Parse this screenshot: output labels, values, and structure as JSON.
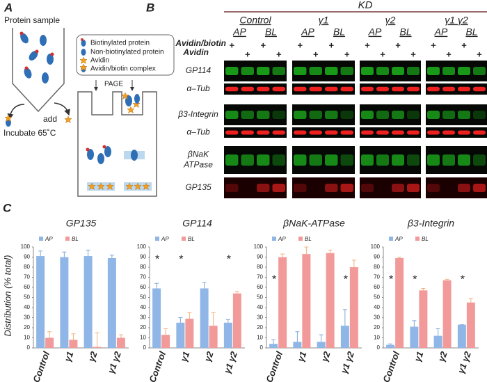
{
  "panel_a": {
    "label": "A",
    "sample": "Protein sample",
    "add": "add",
    "incubate": "Incubate 65˚C",
    "legend": [
      "Biotinylated protein",
      "Non-biotinylated protein",
      "Avidin",
      "Avidin/biotin complex"
    ],
    "page": "PAGE"
  },
  "panel_b": {
    "label": "B",
    "kd": "KD",
    "groups": [
      "Control",
      "γ1",
      "γ2",
      "γ1 γ2"
    ],
    "fractions": [
      "AP",
      "BL"
    ],
    "treatments": [
      "Avidin/biotin",
      "Avidin"
    ],
    "plus": "+",
    "rows": [
      {
        "label": [
          "GP114"
        ],
        "color": "#22e022"
      },
      {
        "label": [
          "α–Tub"
        ],
        "color": "#ee2020"
      },
      {
        "label": [
          "β3-Integrin"
        ],
        "color": "#22e022"
      },
      {
        "label": [
          "α–Tub"
        ],
        "color": "#ee2020"
      },
      {
        "label": [
          "βNaK",
          "ATPase"
        ],
        "color": "#22e022"
      },
      {
        "label": [
          "GP135"
        ],
        "color": "#ee2020"
      }
    ]
  },
  "panel_c": {
    "label": "C",
    "y_label": "Distribution (% total)"
  },
  "chart_data": [
    {
      "type": "bar",
      "title": "GP135",
      "categories": [
        "Control",
        "γ1",
        "γ2",
        "γ1 γ2"
      ],
      "series": [
        {
          "name": "AP",
          "color": "#8fb6e6",
          "values": [
            91,
            90,
            91,
            89
          ],
          "errors": [
            5,
            5,
            6,
            3
          ]
        },
        {
          "name": "BL",
          "color": "#f29a9a",
          "values": [
            10,
            8,
            1,
            10
          ],
          "errors": [
            6,
            6,
            14,
            3
          ]
        }
      ],
      "ylim": [
        0,
        100
      ],
      "yticks": [
        0,
        10,
        20,
        30,
        40,
        50,
        60,
        70,
        80,
        90,
        100
      ]
    },
    {
      "type": "bar",
      "title": "GP114",
      "categories": [
        "Control",
        "γ1",
        "γ2",
        "γ1 γ2"
      ],
      "series": [
        {
          "name": "AP",
          "color": "#8fb6e6",
          "values": [
            59,
            25,
            59,
            25
          ],
          "errors": [
            5,
            5,
            6,
            3
          ]
        },
        {
          "name": "BL",
          "color": "#f29a9a",
          "values": [
            13,
            29,
            22,
            54
          ],
          "errors": [
            6,
            6,
            13,
            2
          ]
        }
      ],
      "ylim": [
        0,
        100
      ],
      "yticks": [
        0,
        10,
        20,
        30,
        40,
        50,
        60,
        70,
        80,
        90,
        100
      ],
      "annotations": [
        {
          "text": "*",
          "category": "Control",
          "y": 90
        },
        {
          "text": "*",
          "category": "γ1",
          "y": 90
        },
        {
          "text": "*",
          "category": "γ1 γ2",
          "y": 90
        }
      ]
    },
    {
      "type": "bar",
      "title": "βNaK-ATPase",
      "categories": [
        "Control",
        "γ1",
        "γ2",
        "γ1 γ2"
      ],
      "series": [
        {
          "name": "AP",
          "color": "#8fb6e6",
          "values": [
            4,
            6,
            6,
            22
          ],
          "errors": [
            4,
            10,
            7,
            16
          ]
        },
        {
          "name": "BL",
          "color": "#f29a9a",
          "values": [
            90,
            93,
            94,
            80
          ],
          "errors": [
            3,
            7,
            3,
            7
          ]
        }
      ],
      "ylim": [
        0,
        100
      ],
      "yticks": [
        0,
        10,
        20,
        30,
        40,
        50,
        60,
        70,
        80,
        90,
        100
      ],
      "annotations": [
        {
          "text": "*",
          "category": "Control",
          "y": 70
        },
        {
          "text": "*",
          "category": "γ1 γ2",
          "y": 70
        }
      ]
    },
    {
      "type": "bar",
      "title": "β3-Integrin",
      "categories": [
        "Control",
        "γ1",
        "γ2",
        "γ1 γ2"
      ],
      "series": [
        {
          "name": "AP",
          "color": "#8fb6e6",
          "values": [
            3,
            21,
            12,
            23
          ],
          "errors": [
            1,
            6,
            7,
            0
          ]
        },
        {
          "name": "BL",
          "color": "#f29a9a",
          "values": [
            89,
            57,
            67,
            45
          ],
          "errors": [
            1,
            2,
            1,
            4
          ]
        }
      ],
      "ylim": [
        0,
        100
      ],
      "yticks": [
        0,
        10,
        20,
        30,
        40,
        50,
        60,
        70,
        80,
        90,
        100
      ],
      "annotations": [
        {
          "text": "*",
          "category": "Control",
          "y": 70
        },
        {
          "text": "*",
          "category": "γ1",
          "y": 70
        },
        {
          "text": "*",
          "category": "γ1 γ2",
          "y": 70
        }
      ]
    }
  ]
}
